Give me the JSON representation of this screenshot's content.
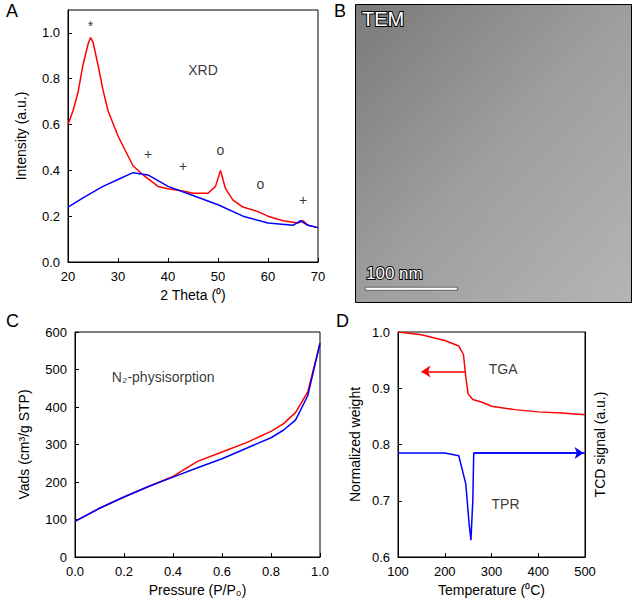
{
  "chart_data": [
    {
      "panel": "A",
      "type": "line",
      "x_label": "2 Theta (⁰)",
      "y_label": "Intensity (a.u.)",
      "xlim": [
        20,
        70
      ],
      "xticks": [
        20,
        30,
        40,
        50,
        60,
        70
      ],
      "ylim": [
        0,
        1.1
      ],
      "yticks": [
        {
          "value": 0,
          "label": "0.0"
        },
        0.2,
        0.4,
        0.6,
        0.8,
        {
          "value": 1,
          "label": "1.0"
        }
      ],
      "annotations": [
        {
          "x": 47,
          "y": 0.84,
          "text": "XRD"
        },
        {
          "x": 24.5,
          "y": 1.03,
          "text": "*"
        },
        {
          "x": 36,
          "y": 0.47,
          "text": "+"
        },
        {
          "x": 43,
          "y": 0.42,
          "text": "+"
        },
        {
          "x": 67,
          "y": 0.27,
          "text": "+"
        },
        {
          "x": 50.5,
          "y": 0.49,
          "text": "o"
        },
        {
          "x": 58.5,
          "y": 0.34,
          "text": "o"
        }
      ],
      "series": [
        {
          "color": "#ff0000",
          "x": [
            20,
            21,
            22,
            23,
            24,
            24.5,
            25,
            26,
            27,
            28,
            30,
            33,
            35,
            38,
            40,
            43,
            45,
            48,
            49.5,
            50.5,
            51.5,
            53,
            55,
            58,
            60,
            63,
            66,
            67,
            68,
            70
          ],
          "values": [
            0.6,
            0.66,
            0.74,
            0.86,
            0.95,
            0.98,
            0.96,
            0.86,
            0.75,
            0.66,
            0.55,
            0.42,
            0.38,
            0.33,
            0.32,
            0.31,
            0.3,
            0.3,
            0.33,
            0.4,
            0.32,
            0.27,
            0.24,
            0.22,
            0.2,
            0.18,
            0.17,
            0.18,
            0.16,
            0.15
          ]
        },
        {
          "color": "#0000ff",
          "x": [
            20,
            23,
            27,
            30,
            33,
            36,
            40,
            45,
            50,
            55,
            60,
            65,
            66.5,
            68,
            70
          ],
          "values": [
            0.24,
            0.28,
            0.33,
            0.36,
            0.39,
            0.38,
            0.33,
            0.29,
            0.25,
            0.2,
            0.17,
            0.16,
            0.18,
            0.16,
            0.15
          ]
        }
      ]
    },
    {
      "panel": "B",
      "type": "image",
      "label": "TEM",
      "scale_bar": "100 nm"
    },
    {
      "panel": "C",
      "type": "line",
      "x_label": "Pressure (P/P₀)",
      "y_label": "Vads (cm³/g STP)",
      "xlim": [
        0,
        1
      ],
      "xticks": [
        {
          "value": 0,
          "label": "0.0"
        },
        0.2,
        0.4,
        0.6,
        0.8,
        {
          "value": 1,
          "label": "1.0"
        }
      ],
      "ylim": [
        0,
        600
      ],
      "yticks": [
        0,
        100,
        200,
        300,
        400,
        500,
        600
      ],
      "annotations": [
        {
          "x": 0.36,
          "y": 480,
          "text": "N₂-physisorption"
        }
      ],
      "series": [
        {
          "color": "#ff0000",
          "x": [
            0,
            0.1,
            0.2,
            0.3,
            0.4,
            0.45,
            0.5,
            0.6,
            0.7,
            0.8,
            0.85,
            0.9,
            0.95,
            1.0
          ],
          "values": [
            95,
            130,
            160,
            188,
            215,
            235,
            255,
            280,
            305,
            335,
            355,
            385,
            440,
            570
          ]
        },
        {
          "color": "#0000ff",
          "x": [
            0,
            0.1,
            0.2,
            0.3,
            0.4,
            0.5,
            0.6,
            0.7,
            0.8,
            0.85,
            0.9,
            0.95,
            1.0
          ],
          "values": [
            95,
            130,
            160,
            188,
            213,
            238,
            262,
            290,
            318,
            338,
            365,
            430,
            570
          ]
        }
      ]
    },
    {
      "panel": "D",
      "type": "line",
      "x_label": "Temperature (⁰C)",
      "y_label": "Normalized weight",
      "y2_label": "TCD signal (a.u.)",
      "xlim": [
        100,
        500
      ],
      "xticks": [
        100,
        200,
        300,
        400,
        500
      ],
      "ylim": [
        0.6,
        1.0
      ],
      "yticks": [
        0.6,
        0.7,
        0.8,
        0.9,
        {
          "value": 1,
          "label": "1.0"
        }
      ],
      "y2lim": [
        0.6,
        1.0
      ],
      "y2ticks": [],
      "annotations": [
        {
          "x": 325,
          "y": 0.935,
          "text": "TGA"
        },
        {
          "x": 330,
          "y": 0.695,
          "text": "TPR"
        }
      ],
      "arrows": [
        {
          "from": [
            245,
            0.93
          ],
          "to": [
            150,
            0.93
          ],
          "color": "#ff0000"
        },
        {
          "from": [
            262,
            0.785
          ],
          "to": [
            497,
            0.785
          ],
          "color": "#0000ff"
        }
      ],
      "series": [
        {
          "color": "#ff0000",
          "x": [
            100,
            150,
            200,
            230,
            240,
            245,
            250,
            260,
            280,
            300,
            350,
            400,
            450,
            500
          ],
          "values": [
            1.0,
            0.995,
            0.985,
            0.975,
            0.96,
            0.92,
            0.89,
            0.88,
            0.875,
            0.868,
            0.862,
            0.858,
            0.856,
            0.853
          ]
        },
        {
          "color": "#0000ff",
          "axis": "y2",
          "x": [
            100,
            200,
            230,
            245,
            252,
            256,
            260,
            262,
            300,
            400,
            500
          ],
          "values": [
            0.785,
            0.785,
            0.78,
            0.73,
            0.66,
            0.63,
            0.7,
            0.785,
            0.785,
            0.785,
            0.785
          ]
        }
      ]
    }
  ]
}
